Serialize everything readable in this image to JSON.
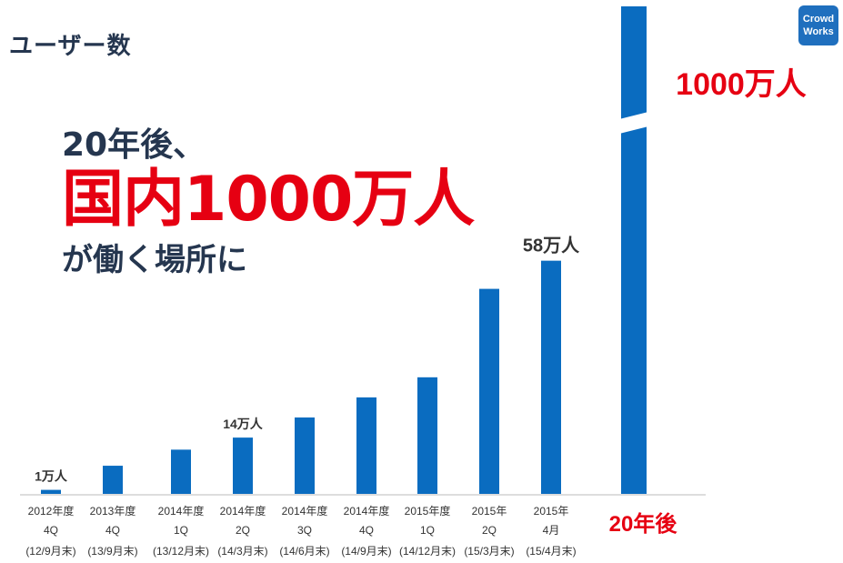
{
  "title": "ユーザー数",
  "logo": {
    "line1": "Crowd",
    "line2": "Works"
  },
  "headline": {
    "line1": "20年後、",
    "line2": "国内1000万人",
    "line3": "が働く場所に"
  },
  "colors": {
    "bar": "#0a6cc0",
    "accent": "#e60012",
    "text": "#25364f"
  },
  "chart_data": {
    "type": "bar",
    "unit": "万人",
    "categories": [
      [
        "2012年度",
        "4Q",
        "(12/9月末)"
      ],
      [
        "2013年度",
        "4Q",
        "(13/9月末)"
      ],
      [
        "2014年度",
        "1Q",
        "(13/12月末)"
      ],
      [
        "2014年度",
        "2Q",
        "(14/3月末)"
      ],
      [
        "2014年度",
        "3Q",
        "(14/6月末)"
      ],
      [
        "2014年度",
        "4Q",
        "(14/9月末)"
      ],
      [
        "2015年度",
        "1Q",
        "(14/12月末)"
      ],
      [
        "2015年",
        "2Q",
        "(15/3月末)"
      ],
      [
        "2015年",
        "4月",
        "(15/4月末)"
      ],
      [
        "20年後"
      ]
    ],
    "values": [
      1,
      7,
      11,
      14,
      19,
      24,
      29,
      51,
      58,
      1000
    ],
    "data_labels": [
      "1万人",
      "",
      "",
      "14万人",
      "",
      "",
      "",
      "",
      "58万人",
      "1000万人"
    ],
    "ylim": [
      0,
      1000
    ],
    "axis_break": true
  }
}
